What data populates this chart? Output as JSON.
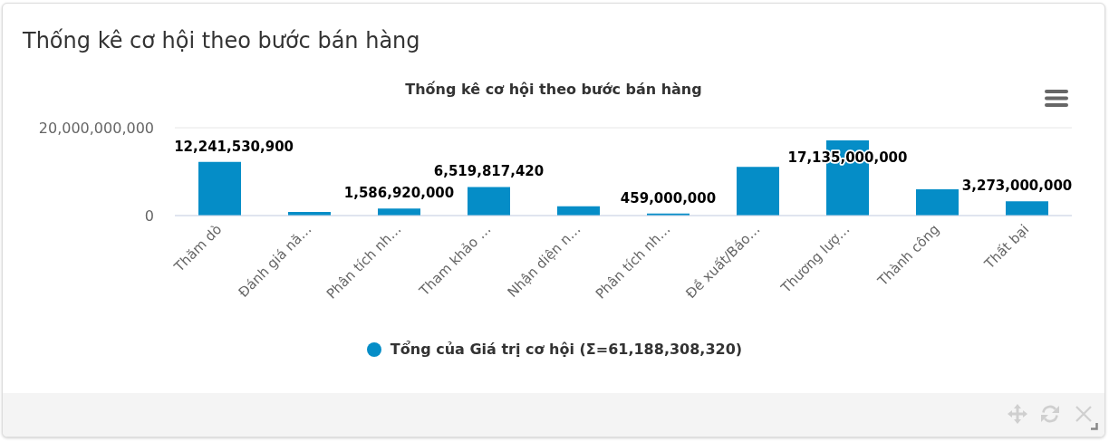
{
  "chart_data": {
    "type": "bar",
    "title": "Thống kê cơ hội theo bước bán hàng",
    "subtitle": "Thống kê cơ hội theo bước bán hàng",
    "categories": [
      "Thăm dò",
      "Đánh giá nă…",
      "Phân tích nh…",
      "Tham khảo …",
      "Nhận diện n…",
      "Phân tích nh…",
      "Đề xuất/Báo…",
      "Thương lượ…",
      "Thành công",
      "Thất bại"
    ],
    "series": [
      {
        "name": "Tổng của Giá trị cơ hội (Σ=61,188,308,320)",
        "color": "#058dc7",
        "values": [
          12241530900,
          800000000,
          1586920000,
          6519817420,
          2100000000,
          459000000,
          11100000000,
          17135000000,
          6000000000,
          3273000000
        ],
        "value_labels": [
          "12,241,530,900",
          null,
          "1,586,920,000",
          "6,519,817,420",
          null,
          "459,000,000",
          null,
          "17,135,000,000",
          null,
          "3,273,000,000"
        ]
      }
    ],
    "ylim": [
      0,
      20000000000
    ],
    "yticks": [
      0,
      {
        "value": 20000000000,
        "label": "20,000,000,000"
      }
    ],
    "grid": "y",
    "legend": "bottom"
  }
}
